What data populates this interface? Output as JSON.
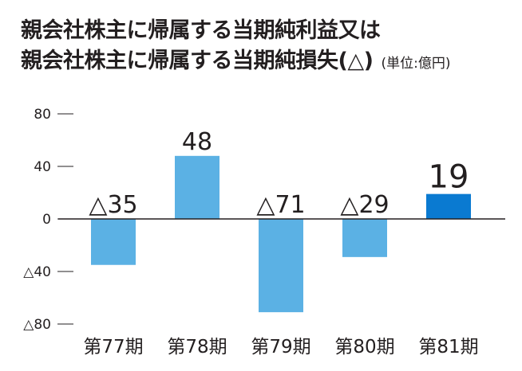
{
  "title": {
    "line1": "親会社株主に帰属する当期純利益又は",
    "line2": "親会社株主に帰属する当期純損失(△)",
    "unit": "(単位:億円)"
  },
  "chart_data": {
    "type": "bar",
    "categories": [
      "第77期",
      "第78期",
      "第79期",
      "第80期",
      "第81期"
    ],
    "values": [
      -35,
      48,
      -71,
      -29,
      19
    ],
    "value_labels": [
      "△35",
      "48",
      "△71",
      "△29",
      "19"
    ],
    "yticks": [
      80,
      40,
      0,
      -40,
      -80
    ],
    "ytick_labels": [
      "80",
      "40",
      "0",
      "△40",
      "△80"
    ],
    "ylim": [
      -80,
      80
    ],
    "grid": false,
    "colors": {
      "default": "#5bb1e4",
      "highlight": "#0a7ad1",
      "axis": "#231f20"
    },
    "highlight_index": 4
  }
}
